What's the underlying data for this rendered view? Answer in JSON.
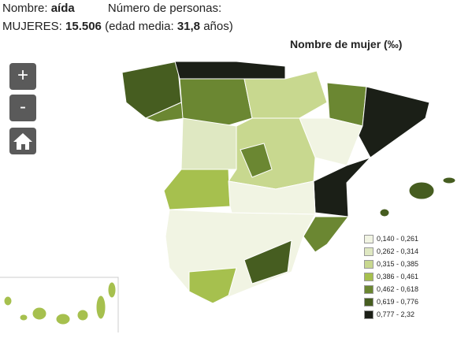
{
  "header": {
    "name_label": "Nombre:",
    "name": "aída",
    "count_label": "Número de personas:",
    "gender_label": "MUJERES:",
    "count": "15.506",
    "age_label": "(edad media:",
    "age": "31,8",
    "age_unit": "años)"
  },
  "controls": {
    "zoom_in": "+",
    "zoom_out": "-"
  },
  "map": {
    "title": "Nombre de mujer (‰)",
    "legend": [
      {
        "label": "0,140 - 0,261",
        "color": "#f1f4e3"
      },
      {
        "label": "0,262 - 0,314",
        "color": "#dfe8c2"
      },
      {
        "label": "0,315 - 0,385",
        "color": "#c8d88f"
      },
      {
        "label": "0,386 - 0,461",
        "color": "#a6c04e"
      },
      {
        "label": "0,462 - 0,618",
        "color": "#6b8732"
      },
      {
        "label": "0,619 - 0,776",
        "color": "#465d20"
      },
      {
        "label": "0,777 - 2,32",
        "color": "#1b1f17"
      }
    ]
  }
}
